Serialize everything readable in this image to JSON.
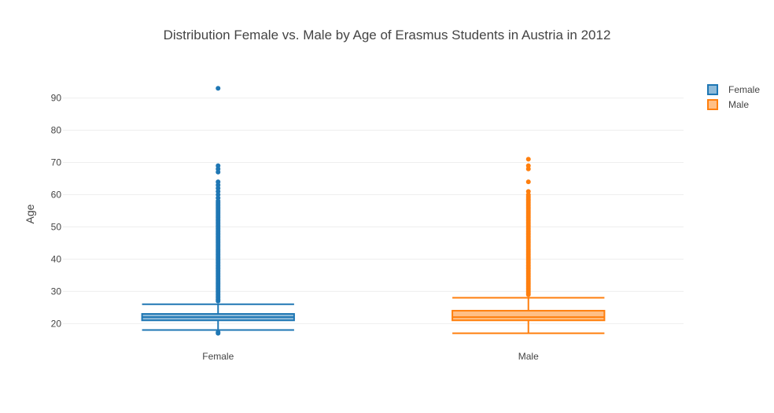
{
  "chart_data": {
    "type": "box",
    "title": "Distribution Female vs. Male by Age of Erasmus Students in Austria in 2012",
    "xlabel": "",
    "ylabel": "Age",
    "categories": [
      "Female",
      "Male"
    ],
    "yticks": [
      20,
      30,
      40,
      50,
      60,
      70,
      80,
      90
    ],
    "ylim": [
      13,
      96
    ],
    "grid": true,
    "legend_position": "top-right",
    "series": [
      {
        "name": "Female",
        "color": "#1f77b4",
        "q1": 21,
        "median": 22,
        "q3": 23,
        "lower_whisker": 18,
        "upper_whisker": 26,
        "outliers": [
          17,
          17.3,
          27,
          27.5,
          28,
          28.5,
          29,
          29.5,
          30,
          30.5,
          31,
          31.5,
          32,
          32.5,
          33,
          33.5,
          34,
          34.5,
          35,
          35.5,
          36,
          36.5,
          37,
          37.5,
          38,
          38.5,
          39,
          39.5,
          40,
          40.5,
          41,
          41.5,
          42,
          42.5,
          43,
          43.5,
          44,
          44.5,
          45,
          45.5,
          46,
          46.5,
          47,
          47.5,
          48,
          48.5,
          49,
          49.5,
          50,
          50.5,
          51,
          51.5,
          52,
          52.5,
          53,
          53.5,
          54,
          54.5,
          55,
          55.5,
          56,
          56.5,
          57,
          57.5,
          58,
          59,
          60,
          61,
          62,
          63,
          64,
          67,
          68,
          69,
          93
        ]
      },
      {
        "name": "Male",
        "color": "#ff7f0e",
        "q1": 21,
        "median": 22,
        "q3": 24,
        "lower_whisker": 17,
        "upper_whisker": 28,
        "outliers": [
          29,
          29.5,
          30,
          30.5,
          31,
          31.5,
          32,
          32.5,
          33,
          33.5,
          34,
          34.5,
          35,
          35.5,
          36,
          36.5,
          37,
          37.5,
          38,
          38.5,
          39,
          39.5,
          40,
          40.5,
          41,
          41.5,
          42,
          42.5,
          43,
          43.5,
          44,
          44.5,
          45,
          45.5,
          46,
          46.5,
          47,
          47.5,
          48,
          48.5,
          49,
          49.5,
          50,
          50.5,
          51,
          51.5,
          52,
          52.5,
          53,
          53.5,
          54,
          54.5,
          55,
          55.5,
          56,
          56.5,
          57,
          57.5,
          58,
          58.5,
          59,
          59.5,
          60,
          61,
          64,
          68,
          69,
          71
        ]
      }
    ]
  }
}
